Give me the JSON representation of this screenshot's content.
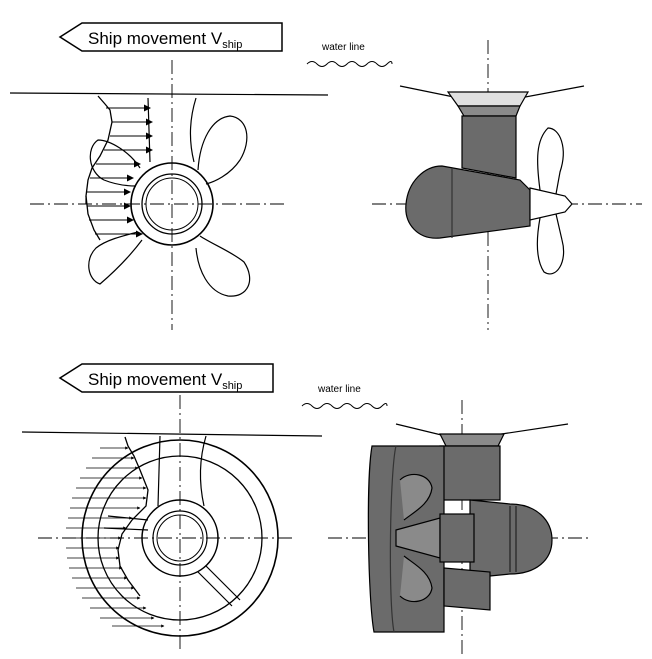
{
  "top": {
    "banner": {
      "label": "Ship movement V",
      "subscript": "ship"
    },
    "water_line": "water line"
  },
  "bottom": {
    "banner": {
      "label": "Ship movement V",
      "subscript": "ship"
    },
    "water_line": "water line"
  },
  "colors": {
    "line": "#000000",
    "pod_fill": "#6b6b6b",
    "pod_fill_light": "#8a8a8a",
    "background": "#ffffff"
  }
}
